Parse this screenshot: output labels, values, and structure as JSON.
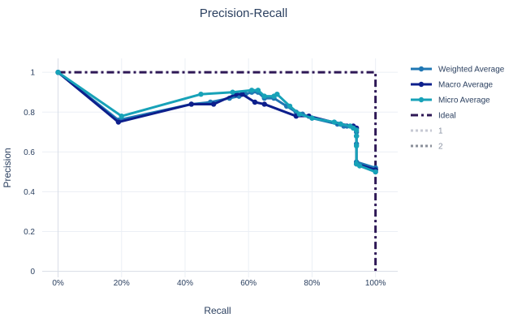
{
  "chart_data": {
    "type": "line",
    "title": "Precision-Recall",
    "xlabel": "Recall",
    "ylabel": "Precision",
    "xlim": [
      -0.05,
      1.07
    ],
    "ylim": [
      -0.03,
      1.07
    ],
    "x_ticks": [
      {
        "value": 0,
        "label": "0%"
      },
      {
        "value": 0.2,
        "label": "20%"
      },
      {
        "value": 0.4,
        "label": "40%"
      },
      {
        "value": 0.6,
        "label": "60%"
      },
      {
        "value": 0.8,
        "label": "80%"
      },
      {
        "value": 1.0,
        "label": "100%"
      }
    ],
    "y_ticks": [
      {
        "value": 0,
        "label": "0"
      },
      {
        "value": 0.2,
        "label": "0.2"
      },
      {
        "value": 0.4,
        "label": "0.4"
      },
      {
        "value": 0.6,
        "label": "0.6"
      },
      {
        "value": 0.8,
        "label": "0.8"
      },
      {
        "value": 1,
        "label": "1"
      }
    ],
    "grid": true,
    "legend_position": "right",
    "series": [
      {
        "name": "Weighted Average",
        "color": "#1f77b4",
        "style": "solid",
        "markers": true,
        "x": [
          0,
          0.19,
          0.42,
          0.48,
          0.54,
          0.57,
          0.59,
          0.61,
          0.63,
          0.65,
          0.68,
          0.72,
          0.75,
          0.77,
          0.8,
          0.88,
          0.9,
          0.91,
          0.93,
          0.94,
          0.94,
          0.94,
          0.94,
          1.0,
          1.0
        ],
        "y": [
          1.0,
          0.76,
          0.84,
          0.85,
          0.87,
          0.88,
          0.89,
          0.9,
          0.9,
          0.87,
          0.87,
          0.83,
          0.8,
          0.79,
          0.77,
          0.74,
          0.73,
          0.73,
          0.72,
          0.7,
          0.68,
          0.64,
          0.55,
          0.52,
          0.51
        ]
      },
      {
        "name": "Macro Average",
        "color": "#0d1f8c",
        "style": "solid",
        "markers": true,
        "x": [
          0,
          0.19,
          0.42,
          0.49,
          0.56,
          0.58,
          0.62,
          0.65,
          0.75,
          0.79,
          0.89,
          0.93,
          0.94,
          0.94,
          1.0,
          1.0
        ],
        "y": [
          1.0,
          0.75,
          0.84,
          0.84,
          0.89,
          0.89,
          0.85,
          0.84,
          0.78,
          0.78,
          0.74,
          0.73,
          0.72,
          0.54,
          0.51,
          0.5
        ]
      },
      {
        "name": "Micro Average",
        "color": "#17a2b8",
        "style": "solid",
        "markers": true,
        "x": [
          0,
          0.2,
          0.45,
          0.55,
          0.61,
          0.63,
          0.65,
          0.68,
          0.69,
          0.73,
          0.76,
          0.8,
          0.87,
          0.89,
          0.92,
          0.93,
          0.94,
          0.94,
          0.94,
          0.94,
          0.95,
          1.0
        ],
        "y": [
          1.0,
          0.78,
          0.89,
          0.9,
          0.91,
          0.91,
          0.88,
          0.88,
          0.89,
          0.83,
          0.79,
          0.77,
          0.75,
          0.74,
          0.73,
          0.72,
          0.71,
          0.68,
          0.63,
          0.54,
          0.53,
          0.5
        ]
      },
      {
        "name": "Ideal",
        "color": "#2e1856",
        "style": "dashdot",
        "markers": false,
        "x": [
          0,
          1,
          1
        ],
        "y": [
          1,
          1,
          0
        ]
      },
      {
        "name": "1",
        "color": "#c6c9d3",
        "style": "dot",
        "markers": false,
        "legend_only": true,
        "x": [],
        "y": []
      },
      {
        "name": "2",
        "color": "#8a8f99",
        "style": "dot",
        "markers": false,
        "legend_only": true,
        "x": [],
        "y": []
      }
    ]
  }
}
